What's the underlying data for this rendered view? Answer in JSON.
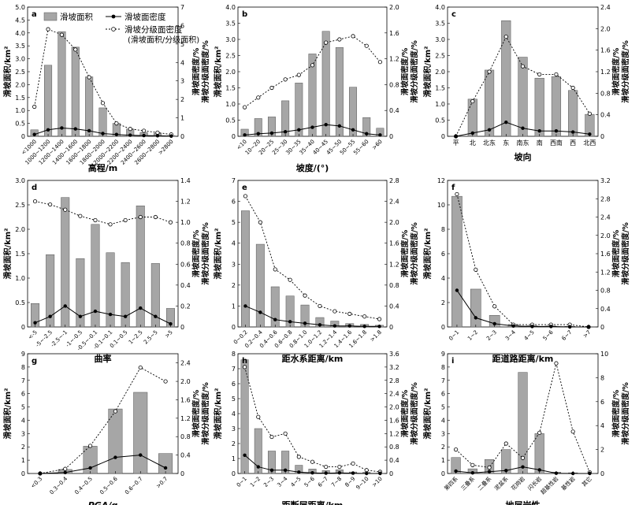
{
  "legend": {
    "area": "滑坡面积",
    "density": "滑坡面密度",
    "grade_density": "滑坡分级面密度",
    "grade_density_note": "(滑坡面积/分级面积)"
  },
  "chart_data": [
    {
      "type": "bar",
      "panel": "a",
      "xlabel": "高程/m",
      "ylabel": "滑坡面积/km²",
      "y2label1": "滑坡面密度/%",
      "y2label2": "滑坡分级面密度/%",
      "ylim": [
        0,
        5
      ],
      "y2lim": [
        0,
        7
      ],
      "yticks": [
        "0",
        "0.5",
        "1.0",
        "1.5",
        "2.0",
        "2.5",
        "3.0",
        "3.5",
        "4.0",
        "4.5",
        "5.0"
      ],
      "y2ticks": [
        "0",
        "1",
        "2",
        "3",
        "4",
        "5",
        "6",
        "7"
      ],
      "categories": [
        "<1000",
        "1000~1200",
        "1200~1400",
        "1400~1600",
        "1600~1800",
        "1800~2000",
        "2000~2200",
        "2200~2400",
        "2400~2600",
        "2600~2800",
        ">2800"
      ],
      "series": [
        {
          "name": "滑坡面积",
          "values": [
            0.25,
            2.75,
            4.05,
            3.45,
            2.3,
            1.1,
            0.5,
            0.28,
            0.15,
            0.12,
            0.03
          ]
        },
        {
          "name": "滑坡面密度",
          "values": [
            0.1,
            0.35,
            0.45,
            0.4,
            0.3,
            0.15,
            0.1,
            0.06,
            0.04,
            0.03,
            0.01
          ]
        },
        {
          "name": "滑坡分级面密度",
          "values": [
            1.6,
            5.8,
            5.5,
            4.7,
            3.2,
            1.8,
            0.7,
            0.4,
            0.3,
            0.2,
            0.1
          ]
        }
      ]
    },
    {
      "type": "bar",
      "panel": "b",
      "xlabel": "坡度/(°)",
      "ylabel": "滑坡面积/km²",
      "y2label1": "滑坡面密度/%",
      "y2label2": "滑坡分级面密度/%",
      "ylim": [
        0,
        4
      ],
      "y2lim": [
        0,
        2
      ],
      "yticks": [
        "0",
        "0.5",
        "1.0",
        "1.5",
        "2.0",
        "2.5",
        "3.0",
        "3.5",
        "4.0"
      ],
      "y2ticks": [
        "0",
        "0.4",
        "0.8",
        "1.2",
        "1.6",
        "2.0"
      ],
      "categories": [
        "<10",
        "10~20",
        "20~25",
        "25~30",
        "30~35",
        "35~40",
        "40~45",
        "45~50",
        "50~55",
        "55~60",
        ">60"
      ],
      "series": [
        {
          "name": "滑坡面积",
          "values": [
            0.22,
            0.55,
            0.6,
            1.1,
            1.65,
            2.55,
            3.25,
            2.75,
            1.52,
            0.58,
            0.25
          ]
        },
        {
          "name": "滑坡面密度",
          "values": [
            0.02,
            0.04,
            0.05,
            0.07,
            0.1,
            0.14,
            0.18,
            0.16,
            0.1,
            0.04,
            0.02
          ]
        },
        {
          "name": "滑坡分级面密度",
          "values": [
            0.45,
            0.6,
            0.75,
            0.88,
            0.95,
            1.1,
            1.45,
            1.5,
            1.55,
            1.4,
            1.15
          ]
        }
      ]
    },
    {
      "type": "bar",
      "panel": "c",
      "xlabel": "坡向",
      "ylabel": "滑坡面积/km²",
      "y2label1": "滑坡面密度/%",
      "y2label2": "滑坡分级面密度/%",
      "ylim": [
        0,
        4
      ],
      "y2lim": [
        0,
        2.4
      ],
      "yticks": [
        "0",
        "0.5",
        "1.0",
        "1.5",
        "2.0",
        "2.5",
        "3.0",
        "3.5",
        "4.0"
      ],
      "y2ticks": [
        "0",
        "0.4",
        "0.8",
        "1.2",
        "1.6",
        "2.0",
        "2.4"
      ],
      "categories": [
        "平",
        "北",
        "北东",
        "东",
        "南东",
        "南",
        "西南",
        "西",
        "北西"
      ],
      "series": [
        {
          "name": "滑坡面积",
          "values": [
            0,
            1.15,
            2.05,
            3.58,
            2.45,
            1.8,
            1.85,
            1.42,
            0.68
          ]
        },
        {
          "name": "滑坡面密度",
          "values": [
            0,
            0.06,
            0.12,
            0.26,
            0.15,
            0.1,
            0.1,
            0.08,
            0.04
          ]
        },
        {
          "name": "滑坡分级面密度",
          "values": [
            0,
            0.65,
            1.2,
            1.85,
            1.3,
            1.15,
            1.15,
            0.9,
            0.42
          ]
        }
      ]
    },
    {
      "type": "bar",
      "panel": "d",
      "xlabel": "曲率",
      "ylabel": "滑坡面积/km²",
      "y2label1": "滑坡面密度/%",
      "y2label2": "滑坡分级面密度/%",
      "ylim": [
        0,
        3
      ],
      "y2lim": [
        0,
        1.4
      ],
      "yticks": [
        "0",
        "0.5",
        "1.0",
        "1.5",
        "2.0",
        "2.5",
        "3.0"
      ],
      "y2ticks": [
        "0",
        "0.2",
        "0.4",
        "0.6",
        "0.8",
        "1.0",
        "1.2",
        "1.4"
      ],
      "categories": [
        "<-5",
        "-5~-2.5",
        "-2.5~-1",
        "-1~-0.5",
        "-0.5~-0.1",
        "-0.1~0.1",
        "0.1~0.5",
        "1~2.5",
        "2.5~5",
        ">5"
      ],
      "series": [
        {
          "name": "滑坡面积",
          "values": [
            0.48,
            1.48,
            2.65,
            1.4,
            2.1,
            1.52,
            1.32,
            2.48,
            1.3,
            0.38
          ]
        },
        {
          "name": "滑坡面密度",
          "values": [
            0.04,
            0.1,
            0.2,
            0.1,
            0.15,
            0.12,
            0.1,
            0.18,
            0.1,
            0.03
          ]
        },
        {
          "name": "滑坡分级面密度",
          "values": [
            1.2,
            1.17,
            1.12,
            1.06,
            1.02,
            0.98,
            1.02,
            1.05,
            1.05,
            1.0
          ]
        }
      ]
    },
    {
      "type": "bar",
      "panel": "e",
      "xlabel": "距水系距离/km",
      "ylabel": "滑坡面积/km²",
      "y2label1": "滑坡面密度/%",
      "y2label2": "滑坡分级面密度/%",
      "ylim": [
        0,
        7
      ],
      "y2lim": [
        0,
        2.8
      ],
      "yticks": [
        "0",
        "1",
        "2",
        "3",
        "4",
        "5",
        "6",
        "7"
      ],
      "y2ticks": [
        "0",
        "0.4",
        "0.8",
        "1.2",
        "1.6",
        "2.0",
        "2.4",
        "2.8"
      ],
      "categories": [
        "0~0.2",
        "0.2~0.4",
        "0.4~0.6",
        "0.6~0.8",
        "0.8~1.0",
        "1.0~1.2",
        "1.2~1.4",
        "1.4~1.6",
        "1.6~1.8",
        ">1.8"
      ],
      "series": [
        {
          "name": "滑坡面积",
          "values": [
            5.55,
            3.95,
            1.92,
            1.48,
            1.05,
            0.45,
            0.28,
            0.16,
            0.12,
            0.08
          ]
        },
        {
          "name": "滑坡面密度",
          "values": [
            0.4,
            0.28,
            0.14,
            0.1,
            0.07,
            0.04,
            0.02,
            0.02,
            0.01,
            0.01
          ]
        },
        {
          "name": "滑坡分级面密度",
          "values": [
            2.5,
            2.0,
            1.1,
            0.9,
            0.6,
            0.4,
            0.3,
            0.25,
            0.2,
            0.15
          ]
        }
      ]
    },
    {
      "type": "bar",
      "panel": "f",
      "xlabel": "距道路距离/km",
      "ylabel": "滑坡面积/km²",
      "y2label1": "滑坡面密度/%",
      "y2label2": "滑坡分级面密度/%",
      "ylim": [
        0,
        12
      ],
      "y2lim": [
        0,
        3.2
      ],
      "yticks": [
        "0",
        "2",
        "4",
        "6",
        "8",
        "10",
        "12"
      ],
      "y2ticks": [
        "0",
        "0.4",
        "0.8",
        "1.2",
        "1.6",
        "2.0",
        "2.4",
        "2.8",
        "3.2"
      ],
      "categories": [
        "0~1",
        "1~2",
        "2~3",
        "3~4",
        "4~5",
        "5~6",
        "6~7",
        ">7"
      ],
      "series": [
        {
          "name": "滑坡面积",
          "values": [
            10.7,
            3.1,
            0.95,
            0.2,
            0.1,
            0.08,
            0.05,
            0
          ]
        },
        {
          "name": "滑坡面密度",
          "values": [
            0.8,
            0.2,
            0.07,
            0.02,
            0.01,
            0.01,
            0,
            0
          ]
        },
        {
          "name": "滑坡分级面密度",
          "values": [
            2.9,
            1.25,
            0.45,
            0.05,
            0.05,
            0.05,
            0.05,
            0
          ]
        }
      ]
    },
    {
      "type": "bar",
      "panel": "g",
      "xlabel": "PGA/g",
      "ylabel": "滑坡面积/km²",
      "y2label1": "滑坡面密度/%",
      "y2label2": "滑坡分级面密度/%",
      "ylim": [
        0,
        9
      ],
      "y2lim": [
        0,
        2.6
      ],
      "yticks": [
        "0",
        "1",
        "2",
        "3",
        "4",
        "5",
        "6",
        "7",
        "8",
        "9"
      ],
      "y2ticks": [
        "0",
        "0.4",
        "0.8",
        "1.2",
        "1.6",
        "2.0",
        "2.4"
      ],
      "categories": [
        "<0.3",
        "0.3~0.4",
        "0.4~0.5",
        "0.5~0.6",
        "0.6~0.7",
        ">0.7"
      ],
      "series": [
        {
          "name": "滑坡面积",
          "values": [
            0,
            0.3,
            2.05,
            4.85,
            6.1,
            1.5
          ]
        },
        {
          "name": "滑坡面密度",
          "values": [
            0,
            0.02,
            0.12,
            0.35,
            0.4,
            0.12
          ]
        },
        {
          "name": "滑坡分级面密度",
          "values": [
            0,
            0.1,
            0.6,
            1.35,
            2.3,
            2.0
          ]
        }
      ]
    },
    {
      "type": "bar",
      "panel": "h",
      "xlabel": "距断层距离/km",
      "ylabel": "滑坡面积/km²",
      "y2label1": "滑坡面密度/%",
      "y2label2": "滑坡分级面密度/%",
      "ylim": [
        0,
        8
      ],
      "y2lim": [
        0,
        3.6
      ],
      "yticks": [
        "0",
        "1",
        "2",
        "3",
        "4",
        "5",
        "6",
        "7",
        "8"
      ],
      "y2ticks": [
        "0",
        "0.4",
        "0.8",
        "1.2",
        "1.6",
        "2.0",
        "2.4",
        "2.8",
        "3.2",
        "3.6"
      ],
      "categories": [
        "0~1",
        "1~2",
        "2~3",
        "3~4",
        "4~5",
        "5~6",
        "6~7",
        "7~8",
        "8~9",
        "9~10",
        ">10"
      ],
      "series": [
        {
          "name": "滑坡面积",
          "values": [
            7.6,
            3.0,
            1.5,
            1.5,
            0.55,
            0.3,
            0.2,
            0.25,
            0.1,
            0.08,
            0.02
          ]
        },
        {
          "name": "滑坡面密度",
          "values": [
            0.55,
            0.2,
            0.1,
            0.1,
            0.04,
            0.02,
            0.01,
            0.02,
            0.01,
            0,
            0
          ]
        },
        {
          "name": "滑坡分级面密度",
          "values": [
            3.2,
            1.7,
            1.1,
            1.2,
            0.5,
            0.35,
            0.2,
            0.2,
            0.3,
            0.1,
            0.05
          ]
        }
      ]
    },
    {
      "type": "bar",
      "panel": "i",
      "xlabel": "地层岩性",
      "ylabel": "滑坡面积/km²",
      "y2label1": "滑坡面密度/%",
      "y2label2": "滑坡分级面密度/%",
      "ylim": [
        0,
        9
      ],
      "y2lim": [
        0,
        10
      ],
      "yticks": [
        "0",
        "1",
        "2",
        "3",
        "4",
        "5",
        "6",
        "7",
        "8",
        "9"
      ],
      "y2ticks": [
        "0",
        "2",
        "4",
        "6",
        "8",
        "10"
      ],
      "categories": [
        "第四系",
        "三叠系",
        "二叠系",
        "泥盆系",
        "花岗岩",
        "闪长岩",
        "超基性岩",
        "基性岩",
        "其它"
      ],
      "series": [
        {
          "name": "滑坡面积",
          "values": [
            1.2,
            0.35,
            1.05,
            1.8,
            7.6,
            3.0,
            0.1,
            0.05,
            0
          ]
        },
        {
          "name": "滑坡面密度",
          "values": [
            0.2,
            0.05,
            0.15,
            0.25,
            0.55,
            0.3,
            0.02,
            0,
            0
          ]
        },
        {
          "name": "滑坡分级面密度",
          "values": [
            2.0,
            0.7,
            0.5,
            2.5,
            1.3,
            3.4,
            9.2,
            3.5,
            0.1
          ]
        }
      ]
    }
  ]
}
